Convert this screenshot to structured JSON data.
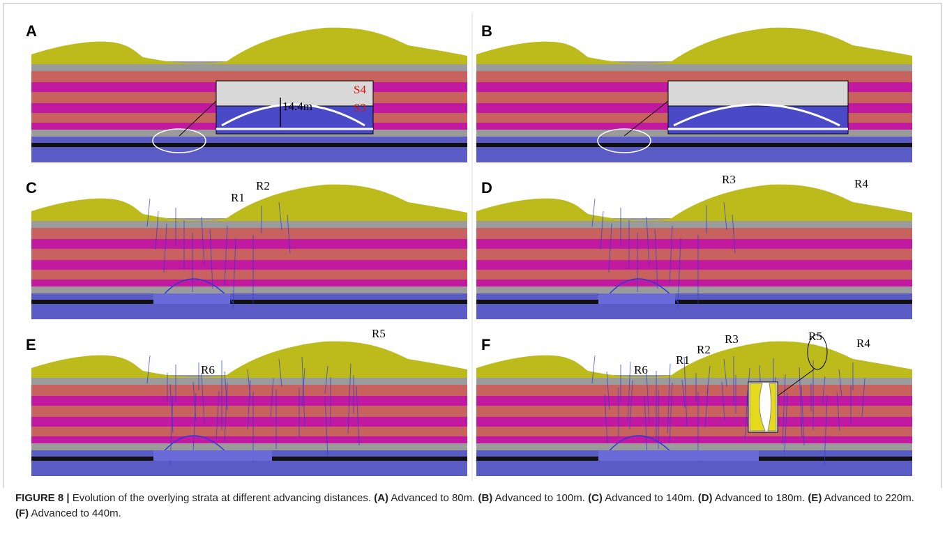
{
  "panels": [
    {
      "label": "A",
      "annotations": [
        "14.4m",
        "S4",
        "S3"
      ]
    },
    {
      "label": "B",
      "annotations": []
    },
    {
      "label": "C",
      "annotations": [
        "R1",
        "R2"
      ]
    },
    {
      "label": "D",
      "annotations": [
        "R3",
        "R4"
      ]
    },
    {
      "label": "E",
      "annotations": [
        "R6",
        "R5"
      ]
    },
    {
      "label": "F",
      "annotations": [
        "R6",
        "R1",
        "R2",
        "R3",
        "R5",
        "R4"
      ]
    }
  ],
  "caption": {
    "figure": "FIGURE 8 |",
    "intro": "Evolution of the overlying strata at different advancing distances.",
    "items": [
      {
        "tag": "(A)",
        "text": "Advanced to 80m."
      },
      {
        "tag": "(B)",
        "text": "Advanced to 100m."
      },
      {
        "tag": "(C)",
        "text": "Advanced to 140m."
      },
      {
        "tag": "(D)",
        "text": "Advanced to 180m."
      },
      {
        "tag": "(E)",
        "text": "Advanced to 220m."
      },
      {
        "tag": "(F)",
        "text": "Advanced to 440m."
      }
    ]
  }
}
